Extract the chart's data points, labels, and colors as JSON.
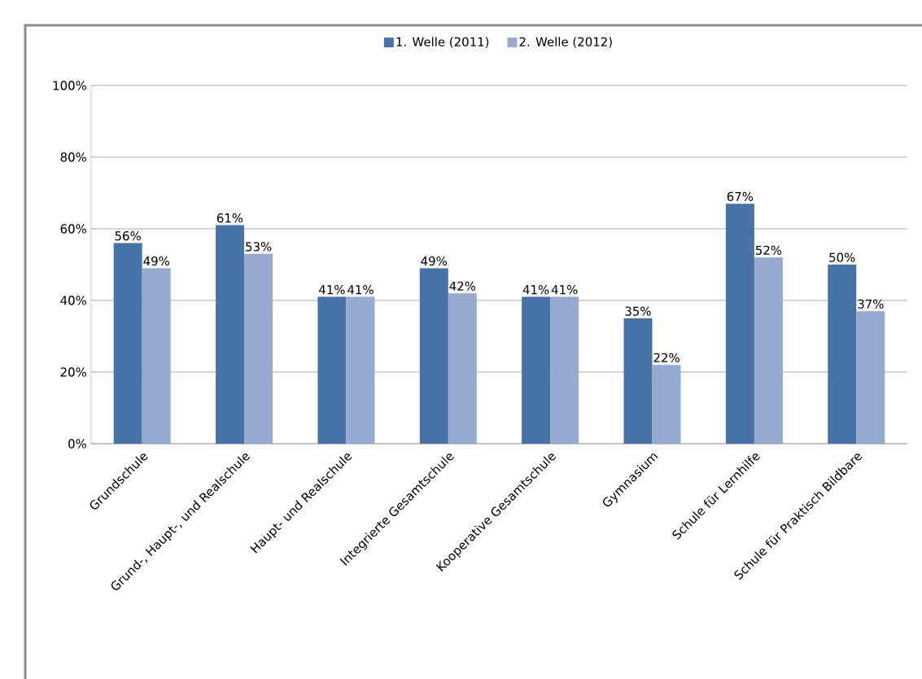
{
  "chart_data": {
    "type": "bar",
    "categories": [
      "Grundschule",
      "Grund-, Haupt-, und Realschule",
      "Haupt- und Realschule",
      "Integrierte Gesamtschule",
      "Kooperative Gesamtschule",
      "Gymnasium",
      "Schule für Lernhilfe",
      "Schule für Praktisch Bildbare"
    ],
    "series": [
      {
        "name": "1. Welle (2011)",
        "color": "#4672a8",
        "values": [
          56,
          61,
          41,
          49,
          41,
          35,
          67,
          50
        ],
        "value_labels": [
          "56%",
          "61%",
          "41%",
          "49%",
          "41%",
          "35%",
          "67%",
          "50%"
        ]
      },
      {
        "name": "2. Welle (2012)",
        "color": "#95a9d1",
        "values": [
          49,
          53,
          41,
          42,
          41,
          22,
          52,
          37
        ],
        "value_labels": [
          "49%",
          "53%",
          "41%",
          "42%",
          "41%",
          "22%",
          "52%",
          "37%"
        ]
      }
    ],
    "ylim": [
      0,
      100
    ],
    "yticks": [
      {
        "value": 0,
        "label": "0%"
      },
      {
        "value": 20,
        "label": "20%"
      },
      {
        "value": 40,
        "label": "40%"
      },
      {
        "value": 60,
        "label": "60%"
      },
      {
        "value": 80,
        "label": "80%"
      },
      {
        "value": 100,
        "label": "100%"
      }
    ],
    "grid": "y",
    "legend": "top"
  }
}
